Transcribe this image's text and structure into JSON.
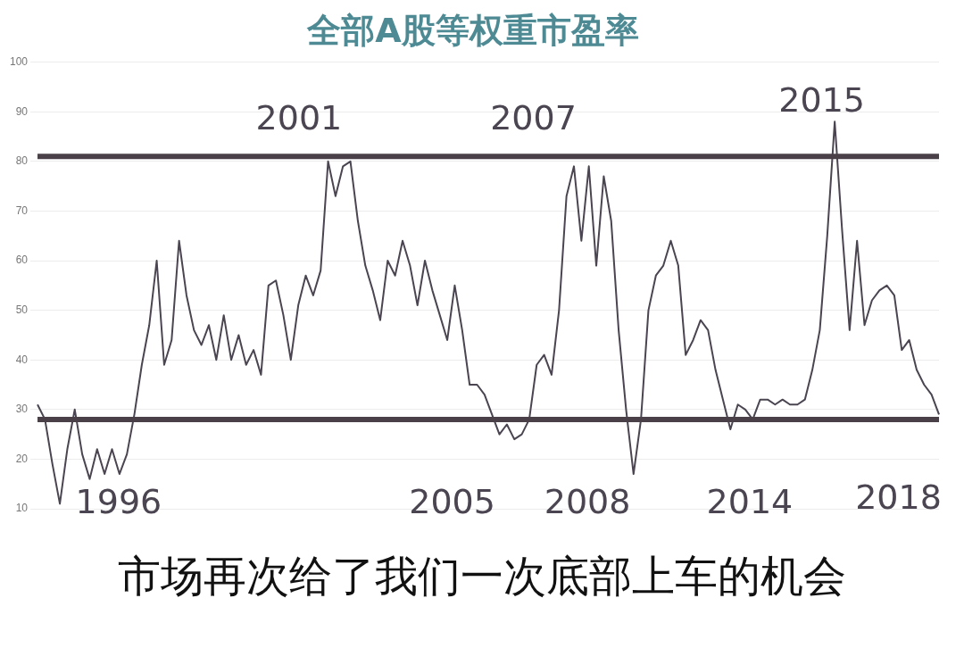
{
  "chart_data": {
    "type": "line",
    "title": "全部A股等权重市盈率",
    "categories": [
      null,
      null,
      null,
      null,
      null,
      null,
      null,
      null,
      null,
      null,
      null,
      null,
      null,
      null,
      null,
      null,
      null,
      null,
      null,
      null,
      null,
      null,
      null,
      null,
      null,
      null,
      null,
      null,
      null,
      null,
      null,
      null,
      null,
      null,
      null,
      null,
      null,
      null,
      null,
      null,
      null,
      null,
      null,
      null,
      null,
      null,
      null,
      null,
      null,
      null,
      null,
      null,
      null,
      null,
      null,
      null,
      null,
      null,
      null,
      null,
      null,
      null,
      null,
      null,
      null,
      null,
      null,
      null,
      null,
      null,
      null,
      null,
      null,
      null,
      null,
      null,
      null,
      null,
      null,
      null,
      null,
      null,
      null,
      null,
      null,
      null,
      null,
      null,
      null,
      null,
      null,
      null,
      null,
      null,
      null,
      null,
      null,
      null,
      null,
      null,
      null,
      null,
      null,
      null,
      null,
      null,
      null,
      null,
      null,
      null,
      null,
      null,
      null,
      null,
      null,
      null,
      null,
      null,
      null,
      null,
      null,
      null
    ],
    "series": [
      {
        "color": "#4a4550",
        "values": [
          31,
          28,
          19,
          11,
          22,
          30,
          21,
          16,
          22,
          17,
          22,
          17,
          21,
          29,
          39,
          47,
          60,
          39,
          44,
          64,
          53,
          46,
          43,
          47,
          40,
          49,
          40,
          45,
          39,
          42,
          37,
          55,
          56,
          49,
          40,
          51,
          57,
          53,
          58,
          80,
          73,
          79,
          80,
          68,
          59,
          54,
          48,
          60,
          57,
          64,
          59,
          51,
          60,
          54,
          49,
          44,
          55,
          46,
          35,
          35,
          33,
          29,
          25,
          27,
          24,
          25,
          28,
          39,
          41,
          37,
          50,
          73,
          79,
          64,
          79,
          59,
          77,
          68,
          46,
          30,
          17,
          28,
          50,
          57,
          59,
          64,
          59,
          41,
          44,
          48,
          46,
          38,
          32,
          26,
          31,
          30,
          28,
          32,
          32,
          31,
          32,
          31,
          31,
          32,
          38,
          46,
          65,
          88,
          66,
          46,
          64,
          47,
          52,
          54,
          55,
          53,
          42,
          44,
          38,
          35,
          33,
          29
        ]
      }
    ],
    "ylim": [
      10,
      100
    ],
    "yticks": [
      10,
      20,
      30,
      40,
      50,
      60,
      70,
      80,
      90,
      100
    ],
    "grid": "y",
    "legend": false,
    "marker": "none",
    "line_style": "solid",
    "ref_lines": [
      {
        "axis": "y",
        "value": 81,
        "color": "#4a4148"
      },
      {
        "axis": "y",
        "value": 28,
        "color": "#4a4148"
      }
    ],
    "annotations": [
      "1996",
      "2001",
      "2005",
      "2007",
      "2008",
      "2014",
      "2015",
      "2018",
      "市场再次给了我们一次底部上车的机会"
    ]
  }
}
